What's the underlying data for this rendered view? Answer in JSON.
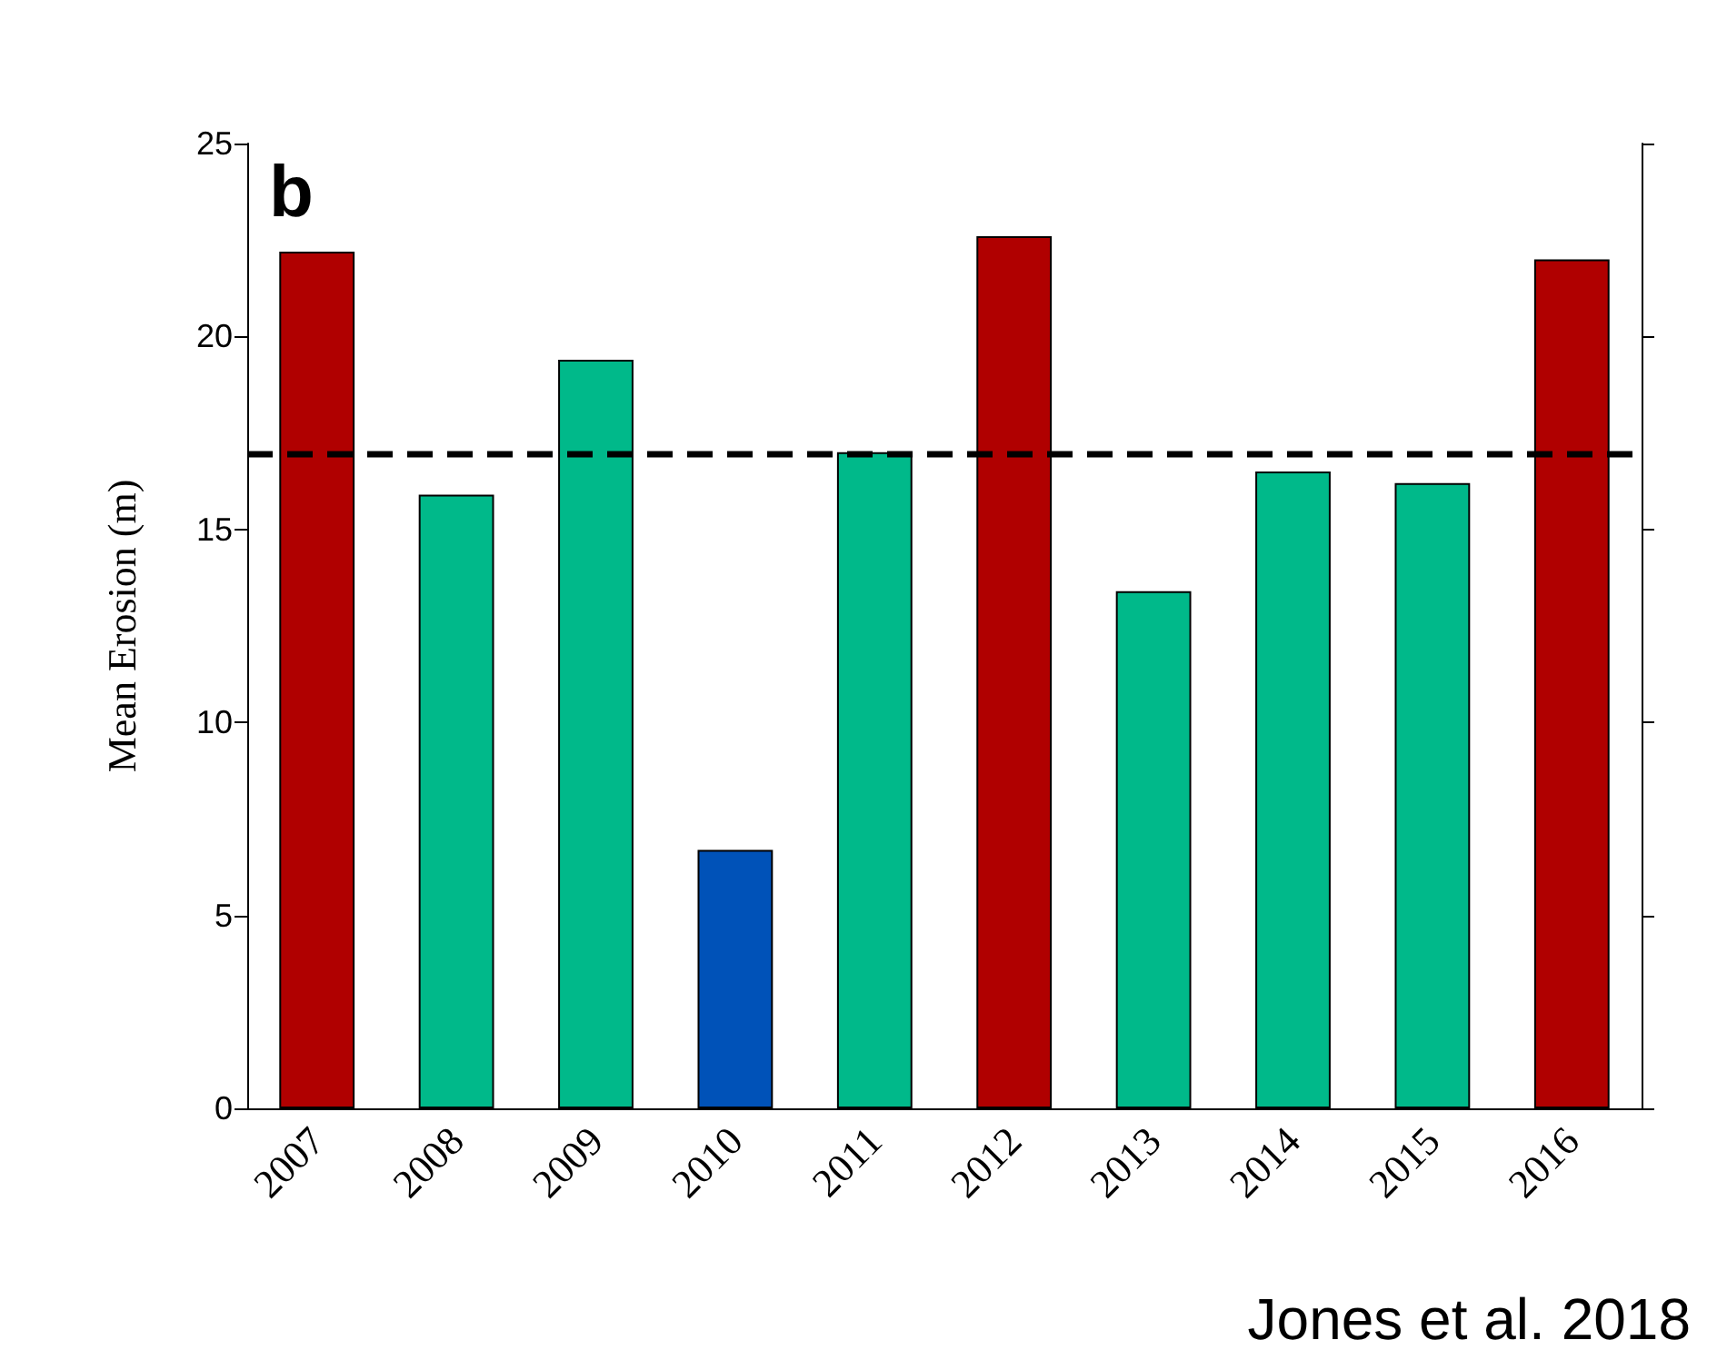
{
  "chart_data": {
    "type": "bar",
    "ylabel": "Mean Erosion (m)",
    "categories": [
      "2007",
      "2008",
      "2009",
      "2010",
      "2011",
      "2012",
      "2013",
      "2014",
      "2015",
      "2016"
    ],
    "values": [
      22.2,
      15.9,
      19.4,
      6.7,
      17.0,
      22.6,
      13.4,
      16.5,
      16.2,
      22.0
    ],
    "colors": [
      "#b00000",
      "#00b98a",
      "#00b98a",
      "#0052b8",
      "#00b98a",
      "#b00000",
      "#00b98a",
      "#00b98a",
      "#00b98a",
      "#b00000"
    ],
    "ylim": [
      0,
      25
    ],
    "yticks": [
      0,
      5,
      10,
      15,
      20,
      25
    ],
    "grid": false,
    "ref_lines": [
      {
        "axis": "y",
        "value": 16.95,
        "color": "#000000",
        "line_style": "dashed"
      }
    ],
    "annotations": [
      "b",
      "Jones et al. 2018"
    ]
  }
}
